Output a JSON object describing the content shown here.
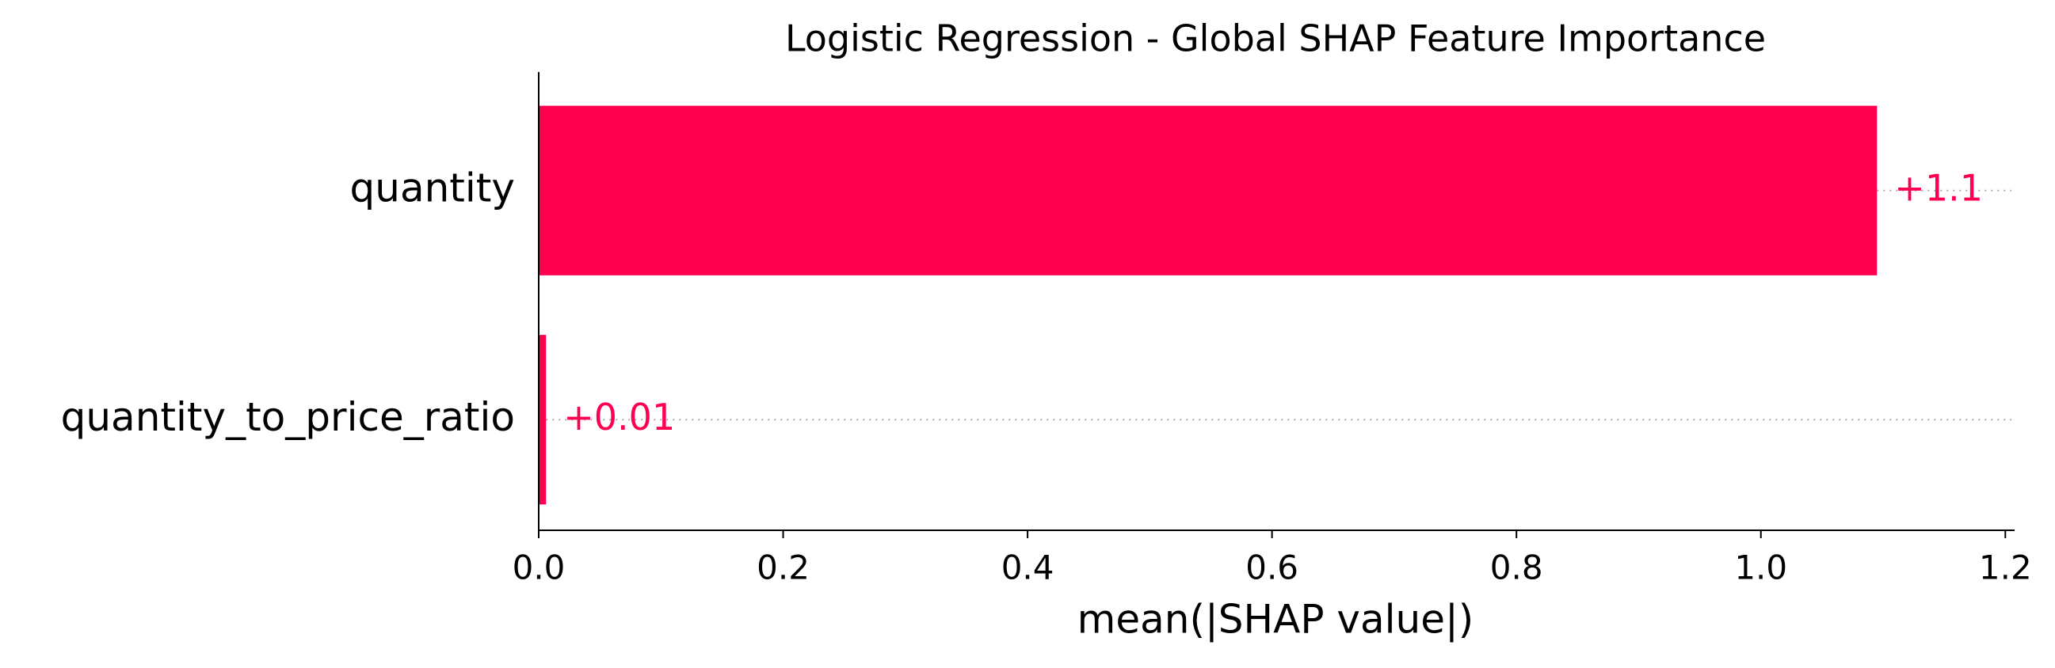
{
  "chart_data": {
    "type": "barh",
    "title": "Logistic Regression - Global SHAP Feature Importance",
    "xlabel": "mean(|SHAP value|)",
    "categories": [
      "quantity",
      "quantity_to_price_ratio"
    ],
    "values": [
      1.095,
      0.006
    ],
    "value_labels": [
      "+1.1",
      "+0.01"
    ],
    "color": "#ff0051",
    "xlim": [
      0,
      1.205
    ],
    "xticks": [
      {
        "value": 0,
        "label": "0.0"
      },
      0.2,
      0.4,
      0.6,
      0.8,
      {
        "value": 1,
        "label": "1.0"
      },
      1.2
    ],
    "grid": false
  }
}
